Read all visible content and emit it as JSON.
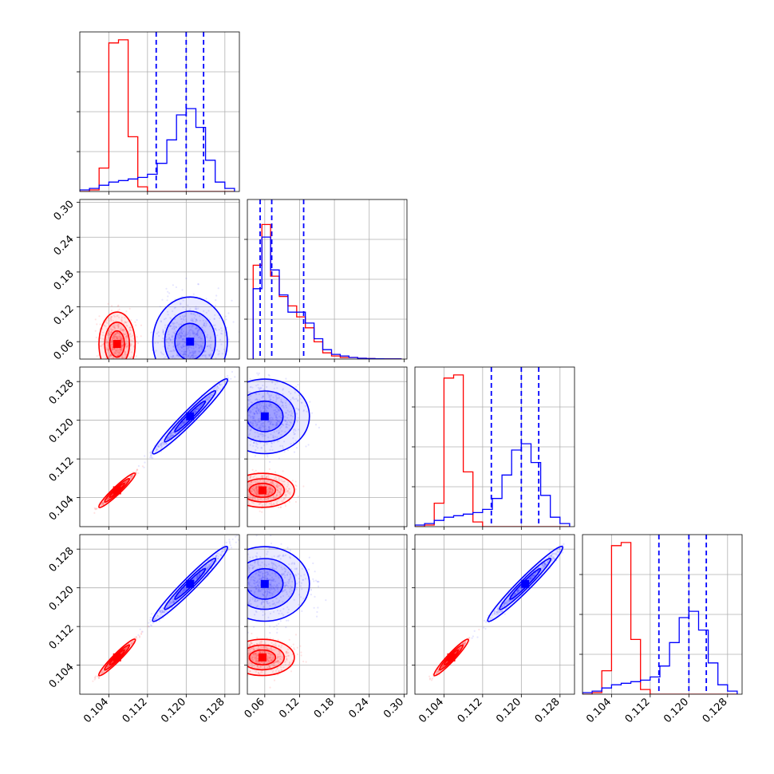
{
  "chart_data": {
    "type": "corner",
    "title": "",
    "parameters": [
      "",
      "",
      "",
      ""
    ],
    "ranges": [
      [
        0.098,
        0.131
      ],
      [
        0.03,
        0.305
      ],
      [
        0.098,
        0.131
      ],
      [
        0.098,
        0.131
      ]
    ],
    "ticks": [
      [
        "0.104",
        "0.112",
        "0.120",
        "0.128"
      ],
      [
        "0.06",
        "0.12",
        "0.18",
        "0.24",
        "0.30"
      ],
      [
        "0.104",
        "0.112",
        "0.120",
        "0.128"
      ],
      [
        "0.104",
        "0.112",
        "0.120",
        "0.128"
      ]
    ],
    "grid": true,
    "series": [
      {
        "color": "#ff0000",
        "means": [
          0.1057,
          0.056,
          0.1055,
          0.1056
        ],
        "sigmas": [
          0.0017,
          0.025,
          0.0016,
          0.0017
        ],
        "scatter_color": "#ff6666"
      },
      {
        "color": "#0000ff",
        "means": [
          0.1208,
          0.06,
          0.1208,
          0.1208
        ],
        "sigmas": [
          0.0035,
          0.035,
          0.0035,
          0.0035
        ],
        "scatter_color": "#6f6fff"
      }
    ],
    "quantile_lines": [
      [
        0.1138,
        0.12,
        0.1236
      ],
      [
        0.052,
        0.072,
        0.127
      ],
      [
        0.1138,
        0.12,
        0.1236
      ],
      [
        0.1138,
        0.12,
        0.1236
      ]
    ],
    "histograms": [
      {
        "bin_edges": [
          0.098,
          0.1,
          0.102,
          0.104,
          0.106,
          0.108,
          0.11,
          0.112,
          0.114,
          0.116,
          0.118,
          0.12,
          0.122,
          0.124,
          0.126,
          0.128,
          0.13
        ],
        "series": [
          {
            "name": "",
            "counts": [
              0,
              0.01,
              0.15,
              0.95,
              0.97,
              0.35,
              0.03,
              0,
              0,
              0,
              0,
              0,
              0,
              0,
              0,
              0
            ]
          },
          {
            "name": "",
            "counts": [
              0.01,
              0.02,
              0.04,
              0.06,
              0.07,
              0.08,
              0.09,
              0.11,
              0.18,
              0.33,
              0.49,
              0.53,
              0.41,
              0.2,
              0.06,
              0.02
            ]
          }
        ]
      },
      {
        "bin_edges": [
          0.04,
          0.055,
          0.07,
          0.085,
          0.1,
          0.115,
          0.13,
          0.145,
          0.16,
          0.175,
          0.19,
          0.205,
          0.22,
          0.235,
          0.25,
          0.265,
          0.28,
          0.295
        ],
        "series": [
          {
            "name": "",
            "counts": [
              0.6,
              0.86,
              0.53,
              0.4,
              0.34,
              0.27,
              0.2,
              0.11,
              0.04,
              0.02,
              0.01,
              0.01,
              0.005,
              0.003,
              0.002,
              0.001,
              0.001
            ]
          },
          {
            "name": "",
            "counts": [
              0.45,
              0.78,
              0.57,
              0.41,
              0.3,
              0.3,
              0.23,
              0.13,
              0.06,
              0.03,
              0.02,
              0.01,
              0.005,
              0.003,
              0.002,
              0.001,
              0.001
            ]
          }
        ]
      },
      {
        "bin_edges": [
          0.098,
          0.1,
          0.102,
          0.104,
          0.106,
          0.108,
          0.11,
          0.112,
          0.114,
          0.116,
          0.118,
          0.12,
          0.122,
          0.124,
          0.126,
          0.128,
          0.13
        ],
        "series": [
          {
            "name": "",
            "counts": [
              0,
              0.01,
              0.15,
              0.95,
              0.97,
              0.35,
              0.03,
              0,
              0,
              0,
              0,
              0,
              0,
              0,
              0,
              0
            ]
          },
          {
            "name": "",
            "counts": [
              0.01,
              0.02,
              0.04,
              0.06,
              0.07,
              0.08,
              0.09,
              0.11,
              0.18,
              0.33,
              0.49,
              0.53,
              0.41,
              0.2,
              0.06,
              0.02
            ]
          }
        ]
      },
      {
        "bin_edges": [
          0.098,
          0.1,
          0.102,
          0.104,
          0.106,
          0.108,
          0.11,
          0.112,
          0.114,
          0.116,
          0.118,
          0.12,
          0.122,
          0.124,
          0.126,
          0.128,
          0.13
        ],
        "series": [
          {
            "name": "",
            "counts": [
              0,
              0.01,
              0.15,
              0.95,
              0.97,
              0.35,
              0.03,
              0,
              0,
              0,
              0,
              0,
              0,
              0,
              0,
              0
            ]
          },
          {
            "name": "",
            "counts": [
              0.01,
              0.02,
              0.04,
              0.06,
              0.07,
              0.08,
              0.09,
              0.11,
              0.18,
              0.33,
              0.49,
              0.53,
              0.41,
              0.2,
              0.06,
              0.02
            ]
          }
        ]
      }
    ]
  }
}
